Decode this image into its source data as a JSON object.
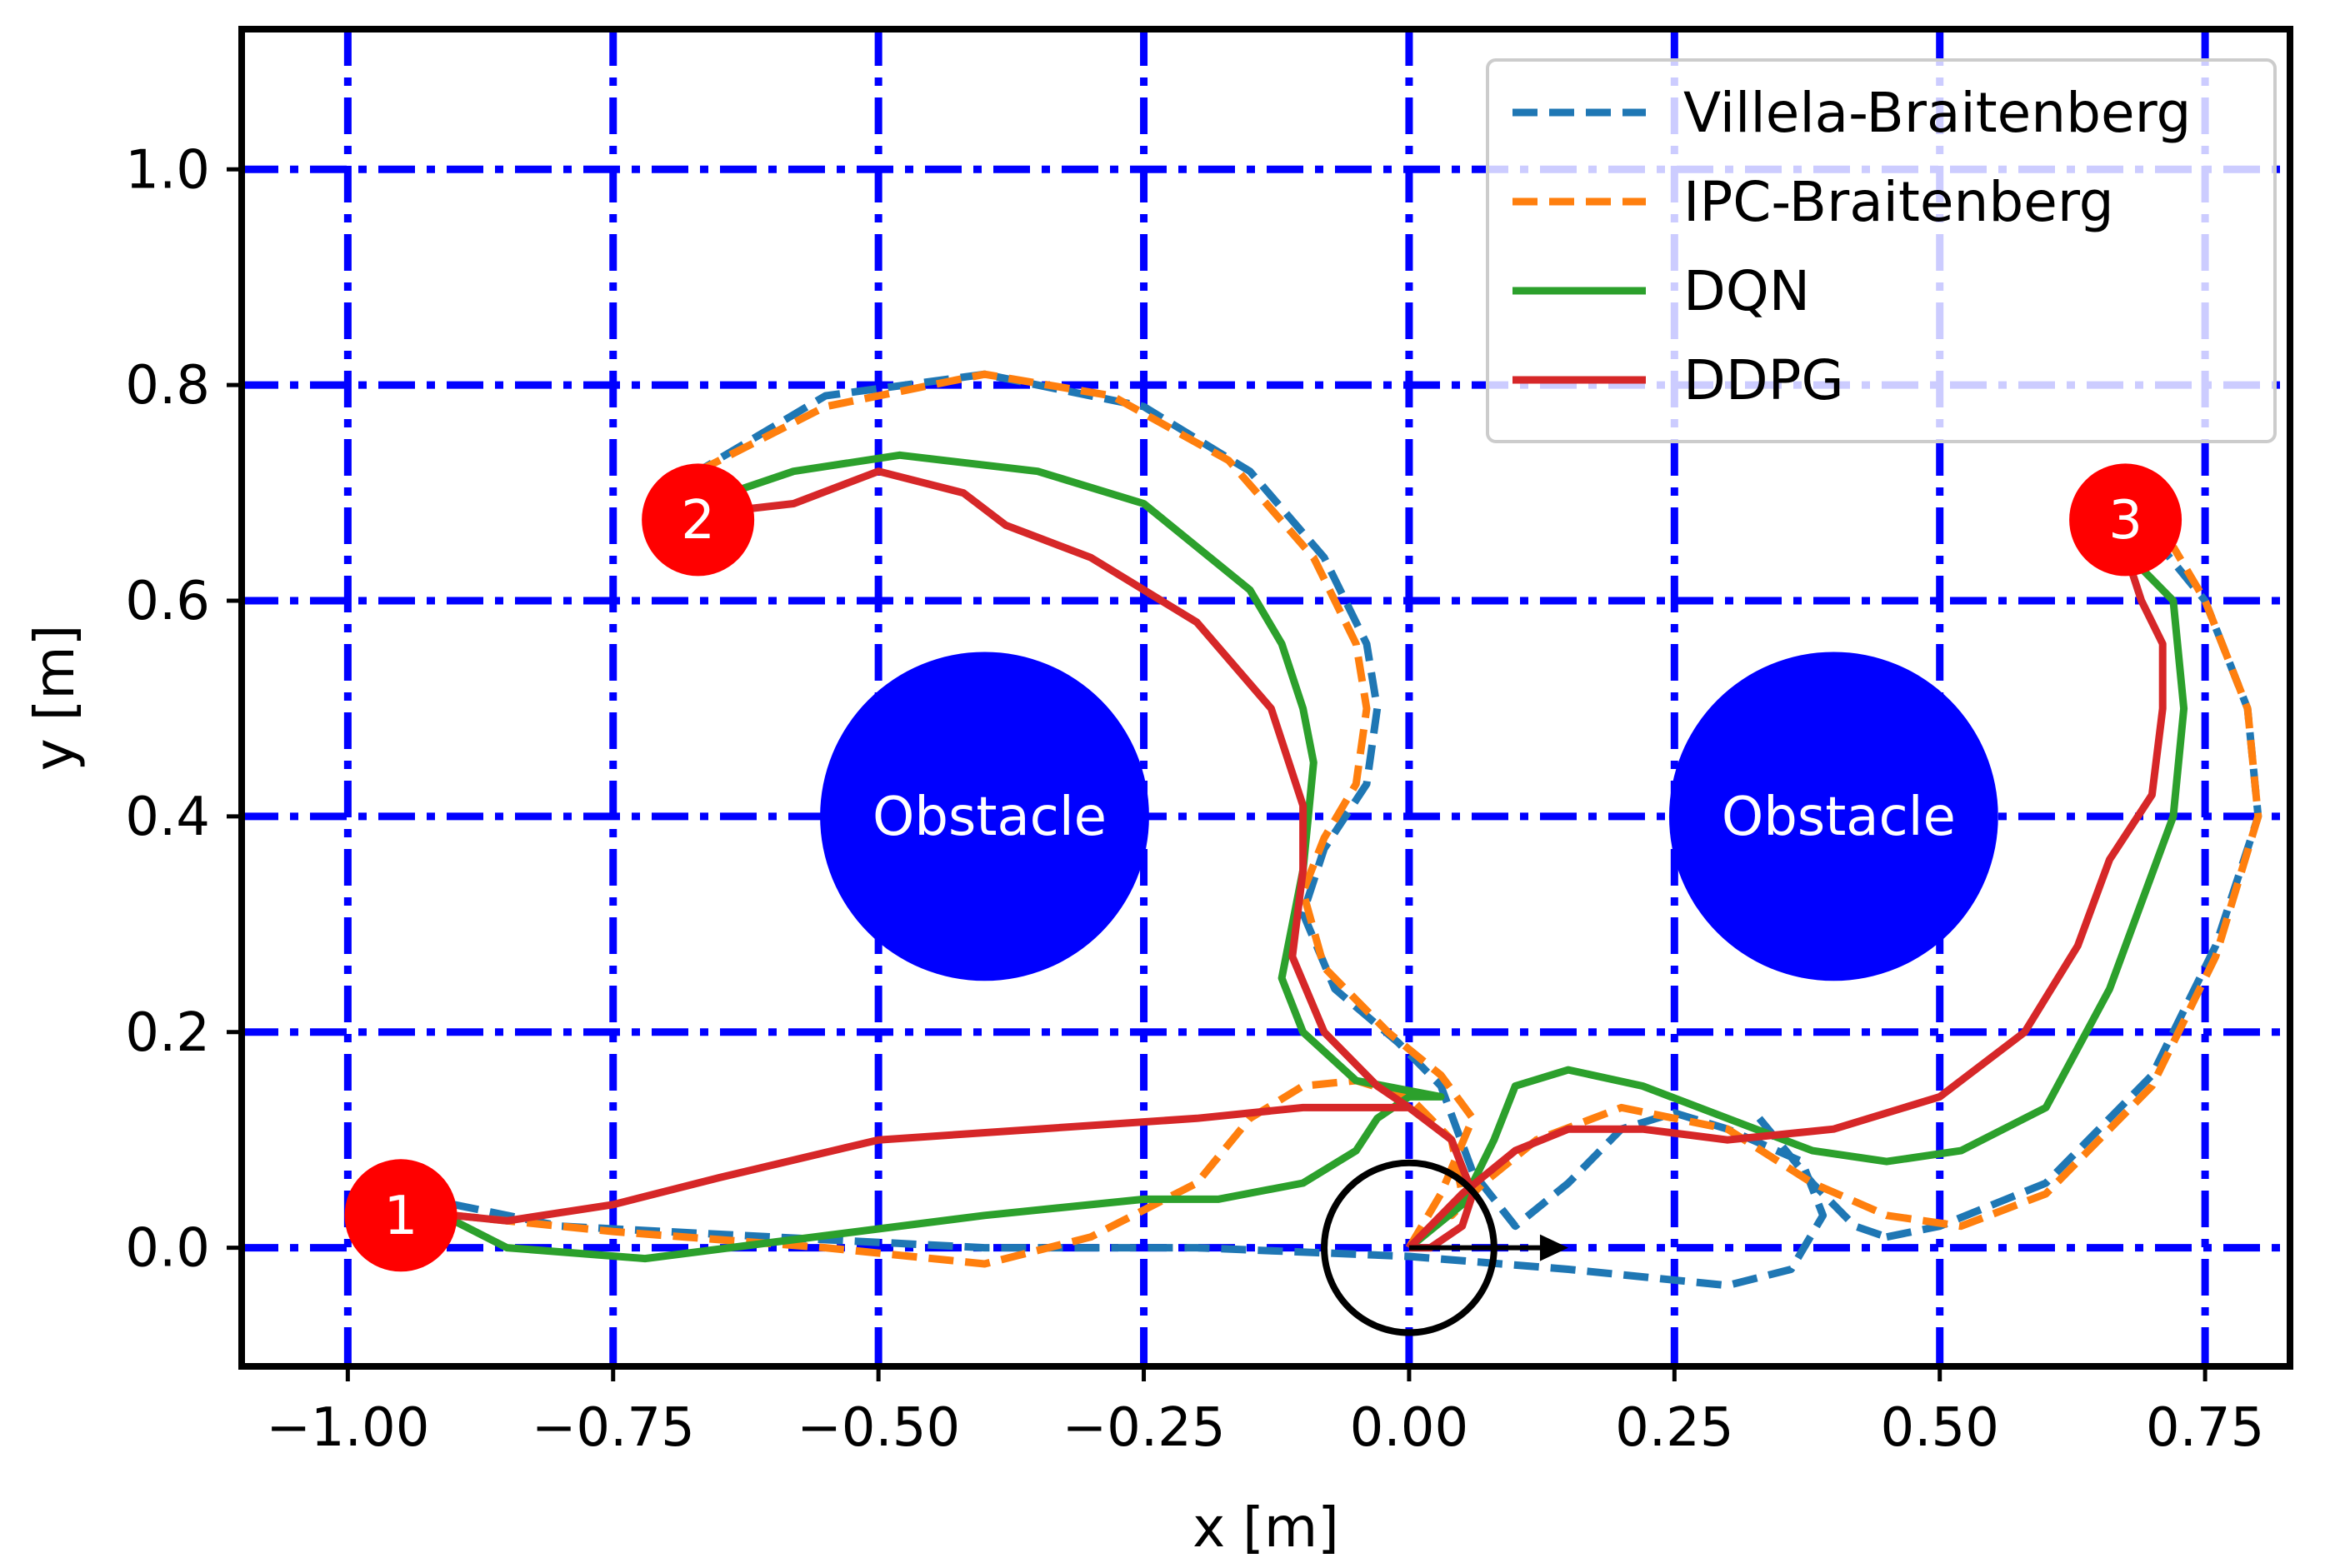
{
  "chart_data": {
    "type": "line",
    "xlabel": "x [m]",
    "ylabel": "y [m]",
    "xlim": [
      -1.1,
      0.83
    ],
    "ylim": [
      -0.11,
      1.13
    ],
    "xticks": [
      -1.0,
      -0.75,
      -0.5,
      -0.25,
      0.0,
      0.25,
      0.5,
      0.75
    ],
    "xtick_labels": [
      "−1.00",
      "−0.75",
      "−0.50",
      "−0.25",
      "0.00",
      "0.25",
      "0.50",
      "0.75"
    ],
    "yticks": [
      0.0,
      0.2,
      0.4,
      0.6,
      0.8,
      1.0
    ],
    "ytick_labels": [
      "0.0",
      "0.2",
      "0.4",
      "0.6",
      "0.8",
      "1.0"
    ],
    "grid": true,
    "grid_color": "#0000ff",
    "legend_position": "top-right",
    "series": [
      {
        "name": "Villela-Braitenberg",
        "color": "#1f77b4",
        "style": "dashed",
        "points": [
          [
            0.33,
            -0.035
          ],
          [
            0.08,
            -0.01
          ],
          [
            -0.2,
            0.0
          ],
          [
            -0.45,
            0.0
          ],
          [
            -0.65,
            0.003
          ],
          [
            -0.9,
            0.04
          ],
          [
            -0.9,
            0.04
          ],
          [
            -0.85,
            0.02
          ],
          [
            -0.7,
            0.01
          ],
          [
            -0.5,
            0.0
          ],
          [
            -0.3,
            0.002
          ],
          [
            -0.1,
            0.001
          ],
          [
            0.0,
            -0.008
          ],
          [
            0.1,
            -0.02
          ],
          [
            0.3,
            -0.035
          ],
          [
            0.38,
            -0.015
          ],
          [
            0.39,
            0.04
          ],
          [
            0.35,
            0.09
          ],
          [
            0.28,
            0.12
          ],
          [
            0.22,
            0.125
          ],
          [
            0.15,
            0.08
          ],
          [
            0.13,
            0.04
          ],
          [
            0.1,
            0.02
          ],
          [
            0.07,
            0.05
          ],
          [
            0.04,
            0.14
          ],
          [
            0.0,
            0.2
          ],
          [
            -0.08,
            0.26
          ],
          [
            -0.1,
            0.32
          ],
          [
            -0.09,
            0.36
          ],
          [
            -0.05,
            0.41
          ],
          [
            -0.03,
            0.48
          ],
          [
            -0.035,
            0.55
          ],
          [
            -0.07,
            0.64
          ],
          [
            -0.18,
            0.75
          ],
          [
            -0.3,
            0.8
          ],
          [
            -0.4,
            0.81
          ],
          [
            -0.5,
            0.8
          ],
          [
            -0.62,
            0.75
          ],
          [
            -0.67,
            0.72
          ],
          [
            -0.9,
            0.04
          ],
          [
            -0.8,
            0.02
          ],
          [
            -0.7,
            0.01
          ],
          [
            0.0,
            0.0
          ],
          [
            0.1,
            -0.01
          ],
          [
            0.2,
            -0.02
          ],
          [
            0.33,
            -0.035
          ]
        ],
        "segments": [
          [
            [
              -0.9,
              0.04
            ],
            [
              -0.8,
              0.02
            ],
            [
              -0.6,
              0.01
            ],
            [
              -0.4,
              0.0
            ],
            [
              -0.2,
              0.0
            ],
            [
              0.0,
              -0.008
            ],
            [
              0.15,
              -0.02
            ],
            [
              0.3,
              -0.035
            ],
            [
              0.36,
              -0.02
            ],
            [
              0.39,
              0.03
            ],
            [
              0.37,
              0.08
            ],
            [
              0.3,
              0.11
            ],
            [
              0.25,
              0.125
            ],
            [
              0.2,
              0.11
            ],
            [
              0.15,
              0.06
            ],
            [
              0.1,
              0.02
            ],
            [
              0.06,
              0.07
            ],
            [
              0.03,
              0.15
            ],
            [
              -0.01,
              0.19
            ],
            [
              -0.07,
              0.24
            ],
            [
              -0.1,
              0.31
            ],
            [
              -0.08,
              0.37
            ],
            [
              -0.04,
              0.43
            ],
            [
              -0.03,
              0.5
            ],
            [
              -0.04,
              0.56
            ],
            [
              -0.08,
              0.64
            ],
            [
              -0.15,
              0.72
            ],
            [
              -0.25,
              0.78
            ],
            [
              -0.4,
              0.81
            ],
            [
              -0.55,
              0.79
            ],
            [
              -0.67,
              0.72
            ]
          ],
          [
            [
              0.45,
              0.01
            ],
            [
              0.5,
              0.02
            ],
            [
              0.6,
              0.06
            ],
            [
              0.7,
              0.16
            ],
            [
              0.76,
              0.28
            ],
            [
              0.8,
              0.4
            ],
            [
              0.79,
              0.5
            ],
            [
              0.75,
              0.6
            ],
            [
              0.7,
              0.66
            ]
          ],
          [
            [
              0.33,
              0.12
            ],
            [
              0.38,
              0.06
            ],
            [
              0.42,
              0.02
            ],
            [
              0.45,
              0.01
            ]
          ]
        ]
      },
      {
        "name": "IPC-Braitenberg",
        "color": "#ff7f0e",
        "style": "dashed",
        "segments": [
          [
            [
              -0.9,
              0.03
            ],
            [
              -0.75,
              0.015
            ],
            [
              -0.55,
              0.0
            ],
            [
              -0.4,
              -0.015
            ],
            [
              -0.3,
              0.01
            ],
            [
              -0.2,
              0.06
            ],
            [
              -0.15,
              0.12
            ],
            [
              -0.1,
              0.15
            ],
            [
              -0.05,
              0.155
            ],
            [
              0.0,
              0.14
            ],
            [
              0.04,
              0.1
            ],
            [
              0.05,
              0.05
            ],
            [
              0.04,
              0.03
            ],
            [
              0.07,
              0.06
            ],
            [
              0.12,
              0.1
            ],
            [
              0.2,
              0.13
            ],
            [
              0.3,
              0.11
            ],
            [
              0.38,
              0.06
            ],
            [
              0.45,
              0.03
            ],
            [
              0.52,
              0.02
            ],
            [
              0.6,
              0.05
            ],
            [
              0.7,
              0.15
            ],
            [
              0.76,
              0.27
            ],
            [
              0.8,
              0.4
            ],
            [
              0.79,
              0.5
            ],
            [
              0.75,
              0.6
            ],
            [
              0.72,
              0.65
            ]
          ],
          [
            [
              0.0,
              0.0
            ],
            [
              0.03,
              0.05
            ],
            [
              0.06,
              0.12
            ],
            [
              0.03,
              0.16
            ],
            [
              -0.02,
              0.2
            ],
            [
              -0.08,
              0.26
            ],
            [
              -0.1,
              0.33
            ],
            [
              -0.08,
              0.38
            ],
            [
              -0.05,
              0.43
            ],
            [
              -0.04,
              0.5
            ],
            [
              -0.05,
              0.56
            ],
            [
              -0.09,
              0.64
            ],
            [
              -0.17,
              0.73
            ],
            [
              -0.28,
              0.79
            ],
            [
              -0.4,
              0.81
            ],
            [
              -0.55,
              0.78
            ],
            [
              -0.67,
              0.72
            ]
          ]
        ]
      },
      {
        "name": "DQN",
        "color": "#2ca02c",
        "style": "solid",
        "segments": [
          [
            [
              -0.91,
              0.03
            ],
            [
              -0.85,
              0.0
            ],
            [
              -0.72,
              -0.01
            ],
            [
              -0.6,
              0.005
            ],
            [
              -0.4,
              0.03
            ],
            [
              -0.25,
              0.045
            ],
            [
              -0.18,
              0.045
            ],
            [
              -0.1,
              0.06
            ],
            [
              -0.05,
              0.09
            ],
            [
              -0.03,
              0.12
            ],
            [
              0.0,
              0.14
            ],
            [
              0.03,
              0.14
            ],
            [
              -0.05,
              0.155
            ],
            [
              -0.1,
              0.2
            ],
            [
              -0.12,
              0.25
            ],
            [
              -0.1,
              0.35
            ],
            [
              -0.09,
              0.45
            ],
            [
              -0.1,
              0.5
            ],
            [
              -0.12,
              0.56
            ],
            [
              -0.15,
              0.61
            ],
            [
              -0.25,
              0.69
            ],
            [
              -0.35,
              0.72
            ],
            [
              -0.48,
              0.735
            ],
            [
              -0.58,
              0.72
            ],
            [
              -0.67,
              0.69
            ]
          ],
          [
            [
              0.0,
              0.0
            ],
            [
              0.05,
              0.04
            ],
            [
              0.08,
              0.1
            ],
            [
              0.1,
              0.15
            ],
            [
              0.15,
              0.165
            ],
            [
              0.22,
              0.15
            ],
            [
              0.3,
              0.12
            ],
            [
              0.38,
              0.09
            ],
            [
              0.45,
              0.08
            ],
            [
              0.52,
              0.09
            ],
            [
              0.6,
              0.13
            ],
            [
              0.66,
              0.24
            ],
            [
              0.72,
              0.4
            ],
            [
              0.73,
              0.5
            ],
            [
              0.72,
              0.6
            ],
            [
              0.69,
              0.63
            ]
          ]
        ]
      },
      {
        "name": "DDPG",
        "color": "#d62728",
        "style": "solid",
        "segments": [
          [
            [
              -0.9,
              0.03
            ],
            [
              -0.85,
              0.025
            ],
            [
              -0.75,
              0.04
            ],
            [
              -0.65,
              0.065
            ],
            [
              -0.5,
              0.1
            ],
            [
              -0.35,
              0.11
            ],
            [
              -0.2,
              0.12
            ],
            [
              -0.1,
              0.13
            ],
            [
              0.0,
              0.13
            ],
            [
              0.04,
              0.1
            ],
            [
              0.06,
              0.05
            ],
            [
              0.05,
              0.02
            ],
            [
              0.02,
              0.0
            ],
            [
              0.0,
              0.0
            ]
          ],
          [
            [
              0.0,
              0.0
            ],
            [
              0.05,
              0.05
            ],
            [
              0.1,
              0.09
            ],
            [
              0.15,
              0.11
            ],
            [
              0.22,
              0.11
            ],
            [
              0.3,
              0.1
            ],
            [
              0.4,
              0.11
            ],
            [
              0.5,
              0.14
            ],
            [
              0.58,
              0.2
            ],
            [
              0.63,
              0.28
            ],
            [
              0.66,
              0.36
            ],
            [
              0.7,
              0.42
            ],
            [
              0.71,
              0.5
            ],
            [
              0.71,
              0.56
            ],
            [
              0.69,
              0.6
            ],
            [
              0.68,
              0.63
            ]
          ],
          [
            [
              0.0,
              0.13
            ],
            [
              -0.03,
              0.15
            ],
            [
              -0.08,
              0.2
            ],
            [
              -0.11,
              0.27
            ],
            [
              -0.1,
              0.35
            ],
            [
              -0.1,
              0.41
            ],
            [
              -0.13,
              0.5
            ],
            [
              -0.2,
              0.58
            ],
            [
              -0.3,
              0.64
            ],
            [
              -0.38,
              0.67
            ],
            [
              -0.42,
              0.7
            ],
            [
              -0.5,
              0.72
            ],
            [
              -0.58,
              0.69
            ],
            [
              -0.67,
              0.68
            ]
          ]
        ]
      }
    ],
    "obstacles": [
      {
        "label": "Obstacle",
        "center": [
          -0.4,
          0.4
        ],
        "radius": 0.155,
        "color": "#0000ff"
      },
      {
        "label": "Obstacle",
        "center": [
          0.4,
          0.4
        ],
        "radius": 0.155,
        "color": "#0000ff"
      }
    ],
    "waypoints": [
      {
        "label": "1",
        "center": [
          -0.95,
          0.03
        ],
        "radius": 0.053,
        "color": "#ff0000"
      },
      {
        "label": "2",
        "center": [
          -0.67,
          0.675
        ],
        "radius": 0.053,
        "color": "#ff0000"
      },
      {
        "label": "3",
        "center": [
          0.675,
          0.675
        ],
        "radius": 0.053,
        "color": "#ff0000"
      }
    ],
    "robot": {
      "center": [
        0.0,
        0.0
      ],
      "radius": 0.08,
      "heading_to": [
        0.15,
        0.0
      ],
      "color": "#000000"
    }
  }
}
